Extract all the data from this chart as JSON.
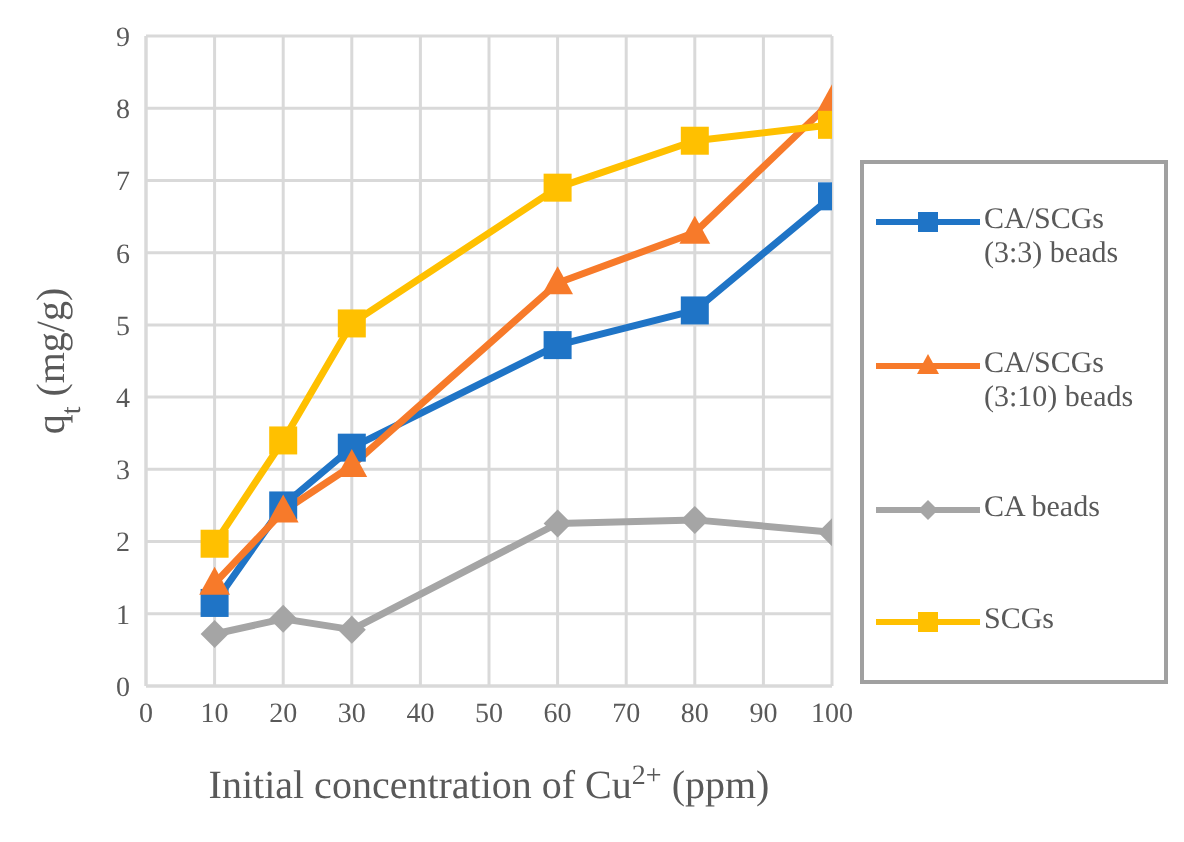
{
  "chart_data": {
    "type": "line",
    "xlabel": "Initial concentration of Cu$^{2+}$ (ppm)",
    "ylabel": "q$_{t}$ (mg/g)",
    "x": [
      10,
      20,
      30,
      60,
      80,
      100
    ],
    "series": [
      {
        "name": "CA/SCGs (3:3) beads",
        "color": "#1f74c6",
        "marker": "square",
        "values": [
          1.15,
          2.5,
          3.3,
          4.72,
          5.2,
          6.78
        ]
      },
      {
        "name": "CA/SCGs (3:10) beads",
        "color": "#f77a2a",
        "marker": "triangle",
        "values": [
          1.42,
          2.42,
          3.05,
          5.58,
          6.28,
          8.1
        ]
      },
      {
        "name": "CA beads",
        "color": "#a5a5a5",
        "marker": "diamond",
        "values": [
          0.72,
          0.93,
          0.78,
          2.25,
          2.3,
          2.13
        ]
      },
      {
        "name": "SCGs",
        "color": "#ffc000",
        "marker": "square",
        "values": [
          1.97,
          3.4,
          5.02,
          6.9,
          7.55,
          7.77
        ]
      }
    ],
    "xlim": [
      0,
      100
    ],
    "xticks": [
      0,
      10,
      20,
      30,
      40,
      50,
      60,
      70,
      80,
      90,
      100
    ],
    "ylim": [
      0,
      9
    ],
    "yticks": [
      0,
      1,
      2,
      3,
      4,
      5,
      6,
      7,
      8,
      9
    ],
    "grid": true,
    "legend": "right",
    "line_style": "solid"
  }
}
